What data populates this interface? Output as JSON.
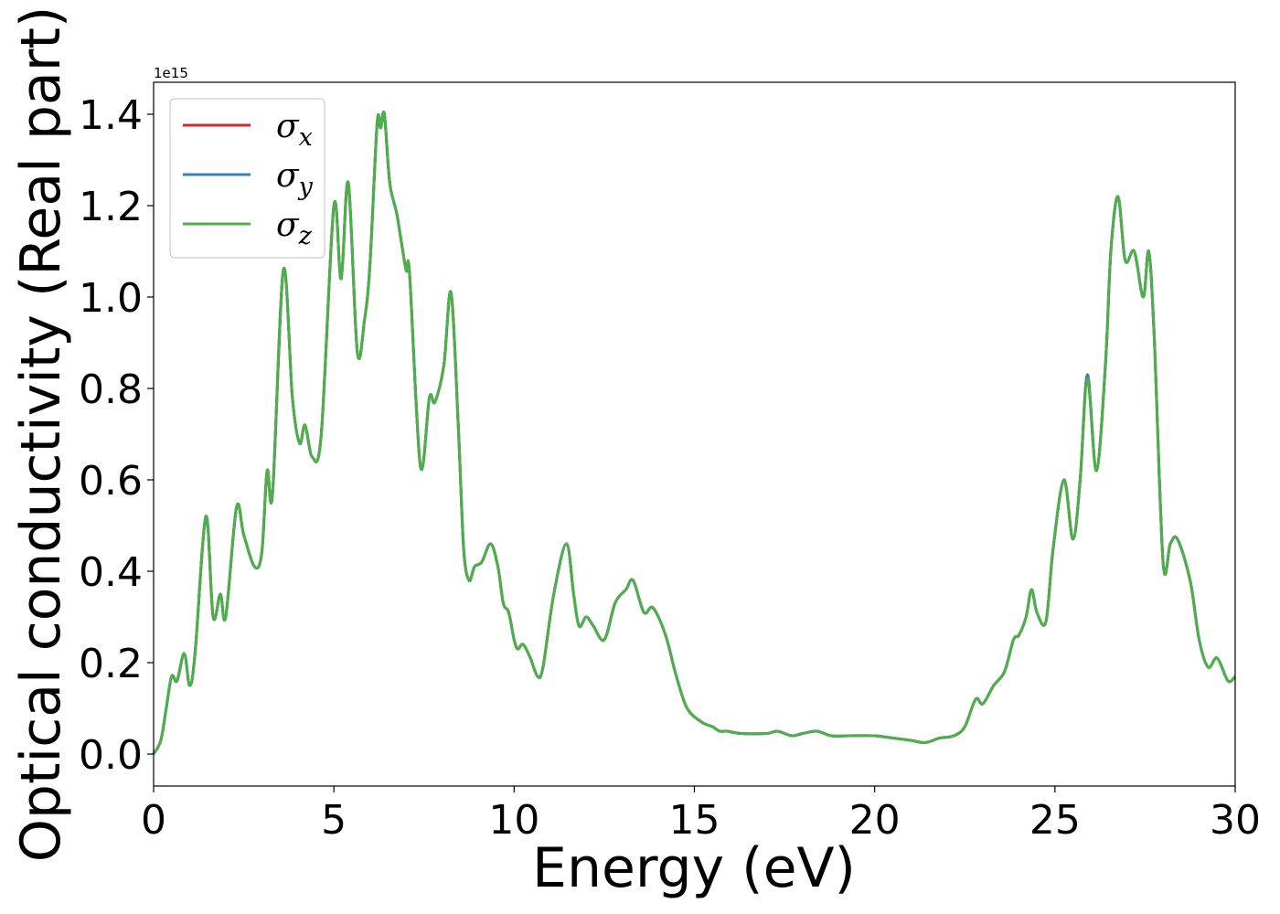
{
  "chart_data": {
    "type": "line",
    "xlabel": "Energy (eV)",
    "ylabel": "Optical conductivity (Real part)",
    "y_offset_text": "1e15",
    "xlim": [
      0,
      30
    ],
    "ylim": [
      -0.07,
      1.47
    ],
    "xticks": [
      0,
      5,
      10,
      15,
      20,
      25,
      30
    ],
    "yticks": [
      0.0,
      0.2,
      0.4,
      0.6,
      0.8,
      1.0,
      1.2,
      1.4
    ],
    "ytick_labels": [
      "0.0",
      "0.2",
      "0.4",
      "0.6",
      "0.8",
      "1.0",
      "1.2",
      "1.4"
    ],
    "legend_position": "upper-left",
    "grid": false,
    "series": [
      {
        "name_base": "σ",
        "name_sub": "x",
        "color": "#d62728",
        "x": [
          0,
          0.2,
          0.35,
          0.5,
          0.65,
          0.85,
          1.0,
          1.15,
          1.45,
          1.65,
          1.85,
          2.0,
          2.3,
          2.5,
          2.8,
          3.0,
          3.15,
          3.3,
          3.6,
          3.85,
          4.05,
          4.2,
          4.4,
          4.65,
          5.0,
          5.2,
          5.4,
          5.65,
          5.85,
          6.0,
          6.2,
          6.3,
          6.4,
          6.55,
          6.75,
          7.0,
          7.1,
          7.4,
          7.65,
          7.8,
          8.05,
          8.25,
          8.45,
          8.6,
          8.75,
          8.9,
          9.1,
          9.35,
          9.55,
          9.7,
          9.85,
          10.0,
          10.1,
          10.25,
          10.45,
          10.65,
          10.8,
          11.1,
          11.45,
          11.65,
          11.8,
          12.0,
          12.2,
          12.5,
          12.8,
          13.1,
          13.3,
          13.6,
          13.85,
          14.2,
          14.5,
          14.8,
          15.2,
          15.5,
          15.7,
          15.9,
          16.3,
          17.0,
          17.3,
          17.7,
          18.0,
          18.4,
          18.8,
          19.3,
          20.0,
          20.5,
          21.0,
          21.4,
          21.8,
          22.2,
          22.5,
          22.8,
          23.0,
          23.3,
          23.6,
          23.85,
          24.0,
          24.2,
          24.35,
          24.5,
          24.75,
          24.95,
          25.25,
          25.5,
          25.7,
          25.9,
          26.15,
          26.4,
          26.55,
          26.75,
          26.95,
          27.2,
          27.45,
          27.6,
          27.75,
          28.0,
          28.2,
          28.4,
          28.75,
          29.0,
          29.25,
          29.5,
          29.8,
          30.0
        ],
        "y": [
          0.0,
          0.03,
          0.1,
          0.17,
          0.16,
          0.22,
          0.15,
          0.22,
          0.52,
          0.3,
          0.35,
          0.3,
          0.54,
          0.48,
          0.41,
          0.44,
          0.62,
          0.57,
          1.06,
          0.78,
          0.68,
          0.72,
          0.65,
          0.7,
          1.2,
          1.04,
          1.25,
          0.88,
          0.95,
          1.07,
          1.38,
          1.37,
          1.4,
          1.25,
          1.18,
          1.06,
          1.05,
          0.63,
          0.78,
          0.77,
          0.85,
          1.01,
          0.72,
          0.45,
          0.38,
          0.41,
          0.42,
          0.46,
          0.41,
          0.33,
          0.31,
          0.25,
          0.23,
          0.24,
          0.21,
          0.17,
          0.19,
          0.35,
          0.46,
          0.35,
          0.28,
          0.3,
          0.28,
          0.25,
          0.33,
          0.36,
          0.38,
          0.31,
          0.32,
          0.26,
          0.17,
          0.1,
          0.07,
          0.06,
          0.05,
          0.05,
          0.045,
          0.045,
          0.05,
          0.04,
          0.045,
          0.05,
          0.04,
          0.04,
          0.04,
          0.035,
          0.03,
          0.025,
          0.035,
          0.04,
          0.06,
          0.12,
          0.11,
          0.15,
          0.18,
          0.25,
          0.26,
          0.3,
          0.36,
          0.31,
          0.29,
          0.45,
          0.6,
          0.47,
          0.6,
          0.83,
          0.62,
          0.85,
          1.1,
          1.22,
          1.08,
          1.1,
          1.0,
          1.1,
          0.92,
          0.42,
          0.46,
          0.47,
          0.38,
          0.25,
          0.19,
          0.21,
          0.16,
          0.17
        ]
      },
      {
        "name_base": "σ",
        "name_sub": "y",
        "color": "#3a7fb8",
        "x": [
          0,
          0.2,
          0.35,
          0.5,
          0.65,
          0.85,
          1.0,
          1.15,
          1.45,
          1.65,
          1.85,
          2.0,
          2.3,
          2.5,
          2.8,
          3.0,
          3.15,
          3.3,
          3.6,
          3.85,
          4.05,
          4.2,
          4.4,
          4.65,
          5.0,
          5.2,
          5.4,
          5.65,
          5.85,
          6.0,
          6.2,
          6.3,
          6.4,
          6.55,
          6.75,
          7.0,
          7.1,
          7.4,
          7.65,
          7.8,
          8.05,
          8.25,
          8.45,
          8.6,
          8.75,
          8.9,
          9.1,
          9.35,
          9.55,
          9.7,
          9.85,
          10.0,
          10.1,
          10.25,
          10.45,
          10.65,
          10.8,
          11.1,
          11.45,
          11.65,
          11.8,
          12.0,
          12.2,
          12.5,
          12.8,
          13.1,
          13.3,
          13.6,
          13.85,
          14.2,
          14.5,
          14.8,
          15.2,
          15.5,
          15.7,
          15.9,
          16.3,
          17.0,
          17.3,
          17.7,
          18.0,
          18.4,
          18.8,
          19.3,
          20.0,
          20.5,
          21.0,
          21.4,
          21.8,
          22.2,
          22.5,
          22.8,
          23.0,
          23.3,
          23.6,
          23.85,
          24.0,
          24.2,
          24.35,
          24.5,
          24.75,
          24.95,
          25.25,
          25.5,
          25.7,
          25.9,
          26.15,
          26.4,
          26.55,
          26.75,
          26.95,
          27.2,
          27.45,
          27.6,
          27.75,
          28.0,
          28.2,
          28.4,
          28.75,
          29.0,
          29.25,
          29.5,
          29.8,
          30.0
        ],
        "y": [
          0.0,
          0.03,
          0.1,
          0.17,
          0.16,
          0.22,
          0.15,
          0.22,
          0.52,
          0.3,
          0.35,
          0.3,
          0.54,
          0.48,
          0.41,
          0.44,
          0.62,
          0.57,
          1.06,
          0.78,
          0.68,
          0.72,
          0.65,
          0.7,
          1.2,
          1.04,
          1.25,
          0.88,
          0.95,
          1.07,
          1.38,
          1.37,
          1.4,
          1.25,
          1.18,
          1.06,
          1.05,
          0.63,
          0.78,
          0.77,
          0.85,
          1.01,
          0.72,
          0.45,
          0.38,
          0.41,
          0.42,
          0.46,
          0.41,
          0.33,
          0.31,
          0.25,
          0.23,
          0.24,
          0.21,
          0.17,
          0.19,
          0.35,
          0.46,
          0.35,
          0.28,
          0.3,
          0.28,
          0.25,
          0.33,
          0.36,
          0.38,
          0.31,
          0.32,
          0.26,
          0.17,
          0.1,
          0.07,
          0.06,
          0.05,
          0.05,
          0.045,
          0.045,
          0.05,
          0.04,
          0.045,
          0.05,
          0.04,
          0.04,
          0.04,
          0.035,
          0.03,
          0.025,
          0.035,
          0.04,
          0.06,
          0.12,
          0.11,
          0.15,
          0.18,
          0.25,
          0.26,
          0.3,
          0.36,
          0.31,
          0.29,
          0.45,
          0.6,
          0.47,
          0.6,
          0.83,
          0.62,
          0.85,
          1.1,
          1.22,
          1.08,
          1.1,
          1.0,
          1.1,
          0.92,
          0.42,
          0.46,
          0.47,
          0.38,
          0.25,
          0.19,
          0.21,
          0.16,
          0.17
        ]
      },
      {
        "name_base": "σ",
        "name_sub": "z",
        "color": "#4daf4a",
        "x": [
          0,
          0.2,
          0.35,
          0.5,
          0.65,
          0.85,
          1.0,
          1.15,
          1.45,
          1.65,
          1.85,
          2.0,
          2.3,
          2.5,
          2.8,
          3.0,
          3.15,
          3.3,
          3.6,
          3.85,
          4.05,
          4.2,
          4.4,
          4.65,
          5.0,
          5.2,
          5.4,
          5.65,
          5.85,
          6.0,
          6.2,
          6.3,
          6.4,
          6.55,
          6.75,
          7.0,
          7.1,
          7.4,
          7.65,
          7.8,
          8.05,
          8.25,
          8.45,
          8.6,
          8.75,
          8.9,
          9.1,
          9.35,
          9.55,
          9.7,
          9.85,
          10.0,
          10.1,
          10.25,
          10.45,
          10.65,
          10.8,
          11.1,
          11.45,
          11.65,
          11.8,
          12.0,
          12.2,
          12.5,
          12.8,
          13.1,
          13.3,
          13.6,
          13.85,
          14.2,
          14.5,
          14.8,
          15.2,
          15.5,
          15.7,
          15.9,
          16.3,
          17.0,
          17.3,
          17.7,
          18.0,
          18.4,
          18.8,
          19.3,
          20.0,
          20.5,
          21.0,
          21.4,
          21.8,
          22.2,
          22.5,
          22.8,
          23.0,
          23.3,
          23.6,
          23.85,
          24.0,
          24.2,
          24.35,
          24.5,
          24.75,
          24.95,
          25.25,
          25.5,
          25.7,
          25.9,
          26.15,
          26.4,
          26.55,
          26.75,
          26.95,
          27.2,
          27.45,
          27.6,
          27.75,
          28.0,
          28.2,
          28.4,
          28.75,
          29.0,
          29.25,
          29.5,
          29.8,
          30.0
        ],
        "y": [
          0.0,
          0.03,
          0.1,
          0.17,
          0.16,
          0.22,
          0.15,
          0.22,
          0.52,
          0.3,
          0.35,
          0.3,
          0.54,
          0.48,
          0.41,
          0.44,
          0.62,
          0.57,
          1.06,
          0.78,
          0.68,
          0.72,
          0.65,
          0.7,
          1.2,
          1.04,
          1.25,
          0.88,
          0.95,
          1.07,
          1.38,
          1.37,
          1.4,
          1.25,
          1.18,
          1.06,
          1.05,
          0.63,
          0.78,
          0.77,
          0.85,
          1.01,
          0.72,
          0.45,
          0.38,
          0.41,
          0.42,
          0.46,
          0.41,
          0.33,
          0.31,
          0.25,
          0.23,
          0.24,
          0.21,
          0.17,
          0.19,
          0.35,
          0.46,
          0.35,
          0.28,
          0.3,
          0.28,
          0.25,
          0.33,
          0.36,
          0.38,
          0.31,
          0.32,
          0.26,
          0.17,
          0.1,
          0.07,
          0.06,
          0.05,
          0.05,
          0.045,
          0.045,
          0.05,
          0.04,
          0.045,
          0.05,
          0.04,
          0.04,
          0.04,
          0.035,
          0.03,
          0.025,
          0.035,
          0.04,
          0.06,
          0.12,
          0.11,
          0.15,
          0.18,
          0.25,
          0.26,
          0.3,
          0.36,
          0.31,
          0.29,
          0.45,
          0.6,
          0.47,
          0.6,
          0.82,
          0.62,
          0.85,
          1.1,
          1.22,
          1.08,
          1.1,
          1.0,
          1.1,
          0.92,
          0.42,
          0.46,
          0.47,
          0.38,
          0.25,
          0.19,
          0.21,
          0.16,
          0.17
        ]
      }
    ]
  }
}
